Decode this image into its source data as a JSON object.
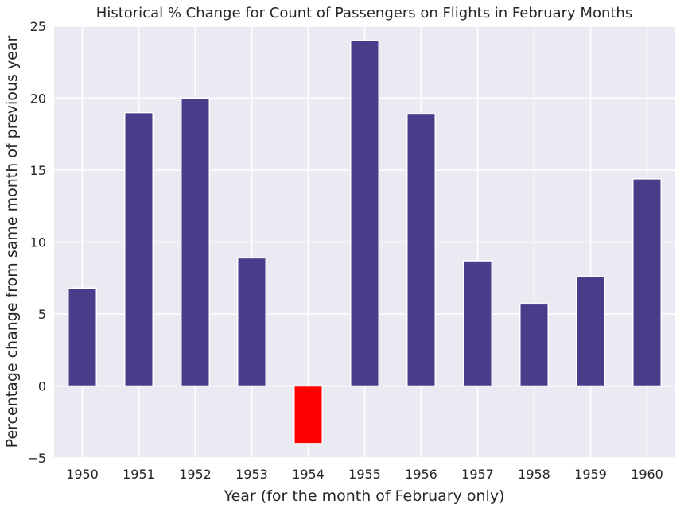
{
  "chart_data": {
    "type": "bar",
    "title": "Historical % Change for Count of Passengers on Flights in February Months",
    "xlabel": "Year (for the month of February only)",
    "ylabel": "Percentage change from same month of previous year",
    "categories": [
      "1950",
      "1951",
      "1952",
      "1953",
      "1954",
      "1955",
      "1956",
      "1957",
      "1958",
      "1959",
      "1960"
    ],
    "values": [
      6.8,
      19.0,
      20.0,
      8.9,
      -4.0,
      24.0,
      18.9,
      8.7,
      5.7,
      7.6,
      14.4
    ],
    "ylim": [
      -5,
      25
    ],
    "yticks": [
      -5,
      0,
      5,
      10,
      15,
      20,
      25
    ],
    "ytick_labels": [
      "−5",
      "0",
      "5",
      "10",
      "15",
      "20",
      "25"
    ],
    "grid": true,
    "colors": {
      "positive": "#483d8b",
      "negative": "#ff0000",
      "background": "#eaeaf2",
      "grid": "#ffffff"
    }
  }
}
